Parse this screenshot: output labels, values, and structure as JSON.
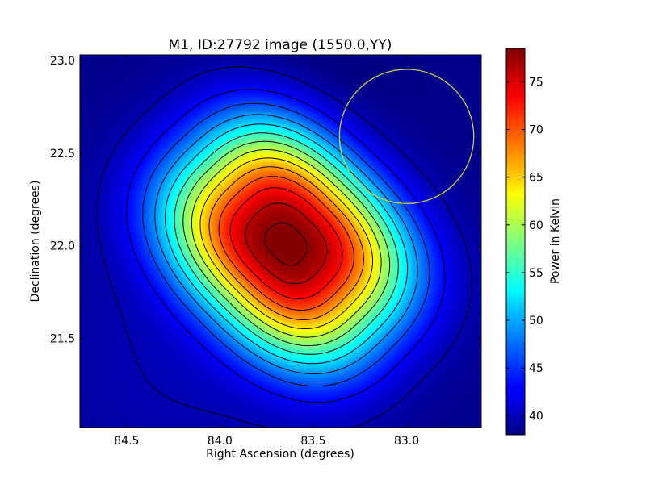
{
  "chart_data": {
    "type": "heatmap",
    "title": "M1, ID:27792 image (1550.0,YY)",
    "xlabel": "Right Ascension (degrees)",
    "ylabel": "Declination (degrees)",
    "colorbar_label": "Power in Kelvin",
    "colormap": "jet",
    "x_inverted": true,
    "xlim": [
      84.75,
      82.6
    ],
    "ylim": [
      21.02,
      23.03
    ],
    "xticks": [
      84.5,
      84.0,
      83.5,
      83.0
    ],
    "xtick_labels": [
      "84.5",
      "84.0",
      "83.5",
      "83.0"
    ],
    "yticks": [
      21.5,
      22.0,
      22.5,
      23.0
    ],
    "ytick_labels": [
      "21.5",
      "22.0",
      "22.5",
      "23.0"
    ],
    "colorbar_range": [
      38,
      78.5
    ],
    "colorbar_ticks": [
      40,
      45,
      50,
      55,
      60,
      65,
      70,
      75
    ],
    "colorbar_tick_labels": [
      "40",
      "45",
      "50",
      "55",
      "60",
      "65",
      "70",
      "75"
    ],
    "source": {
      "ra": 83.64,
      "dec": 22.02,
      "peak": 78,
      "background": 38.5
    },
    "contour_levels": [
      40,
      43,
      46,
      49,
      52,
      55,
      58,
      61,
      64,
      67,
      70,
      73,
      76,
      78
    ],
    "beam_circle": {
      "ra": 83.0,
      "dec": 22.59,
      "radius_deg": 0.36,
      "color": "#cccc44"
    },
    "grid": false
  }
}
